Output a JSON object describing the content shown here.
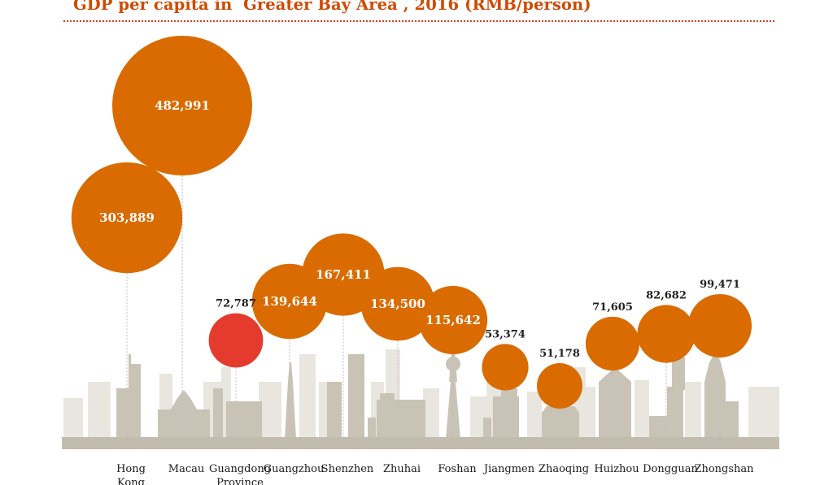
{
  "title": "GDP per capita in  Greater Bay Area , 2016 (RMB/person)",
  "colors": {
    "bubble": "#d96b00",
    "highlight": "#e53a2e",
    "title": "#d04a02",
    "skyline": "#c9c3b6",
    "skyline_light": "#e9e6df",
    "ground": "#c2bcae"
  },
  "chart_data": {
    "type": "bubble",
    "title": "GDP per capita in  Greater Bay Area , 2016 (RMB/person)",
    "unit": "RMB/person",
    "categories": [
      [
        "Hong",
        "Kong"
      ],
      [
        "Macau"
      ],
      [
        "Guangdong",
        "Province"
      ],
      [
        "Guangzhou"
      ],
      [
        "Shenzhen"
      ],
      [
        "Zhuhai"
      ],
      [
        "Foshan"
      ],
      [
        "Jiangmen"
      ],
      [
        "Zhaoqing"
      ],
      [
        "Huizhou"
      ],
      [
        "Dongguan"
      ],
      [
        "Zhongshan"
      ]
    ],
    "values": [
      303889,
      482991,
      72787,
      139644,
      167411,
      134500,
      115642,
      53374,
      51178,
      71605,
      82682,
      99471
    ],
    "labels": [
      "303,889",
      "482,991",
      "72,787",
      "139,644",
      "167,411",
      "134,500",
      "115,642",
      "53,374",
      "51,178",
      "71,605",
      "82,682",
      "99,471"
    ],
    "highlighted": [
      "Guangdong Province"
    ]
  }
}
